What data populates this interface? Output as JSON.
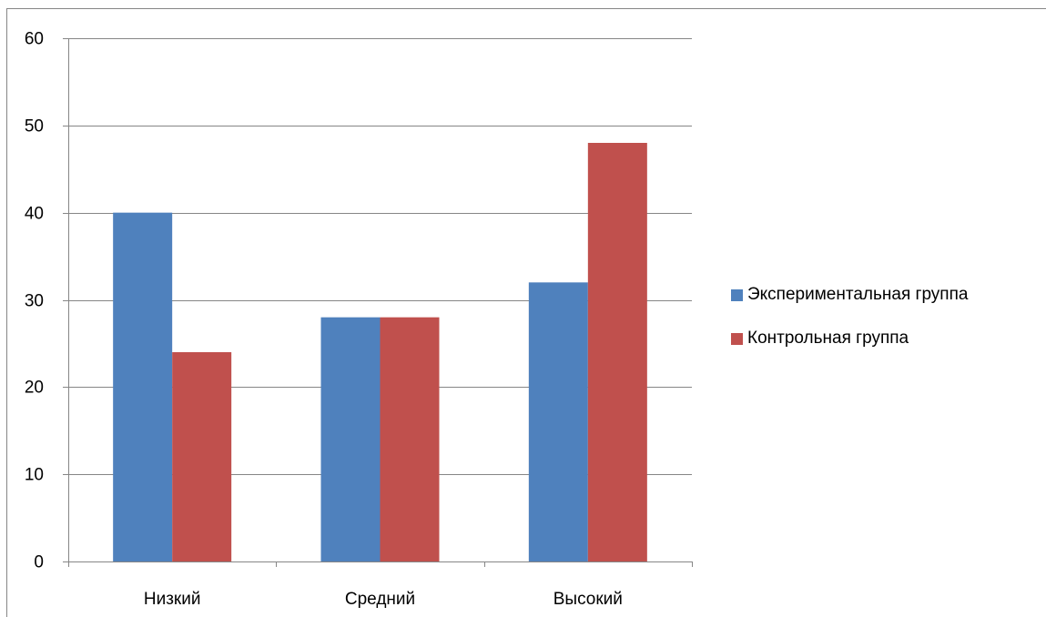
{
  "chart_data": {
    "type": "bar",
    "categories": [
      "Низкий",
      "Средний",
      "Высокий"
    ],
    "series": [
      {
        "name": "Экспериментальная группа",
        "values": [
          40,
          28,
          32
        ],
        "color": "#4F81BD"
      },
      {
        "name": "Контрольная группа",
        "values": [
          24,
          28,
          48
        ],
        "color": "#C0504D"
      }
    ],
    "title": "",
    "xlabel": "",
    "ylabel": "",
    "ylim": [
      0,
      60
    ],
    "yticks": [
      "0",
      "10",
      "20",
      "30",
      "40",
      "50",
      "60"
    ],
    "grid": true,
    "legend_position": "right"
  }
}
